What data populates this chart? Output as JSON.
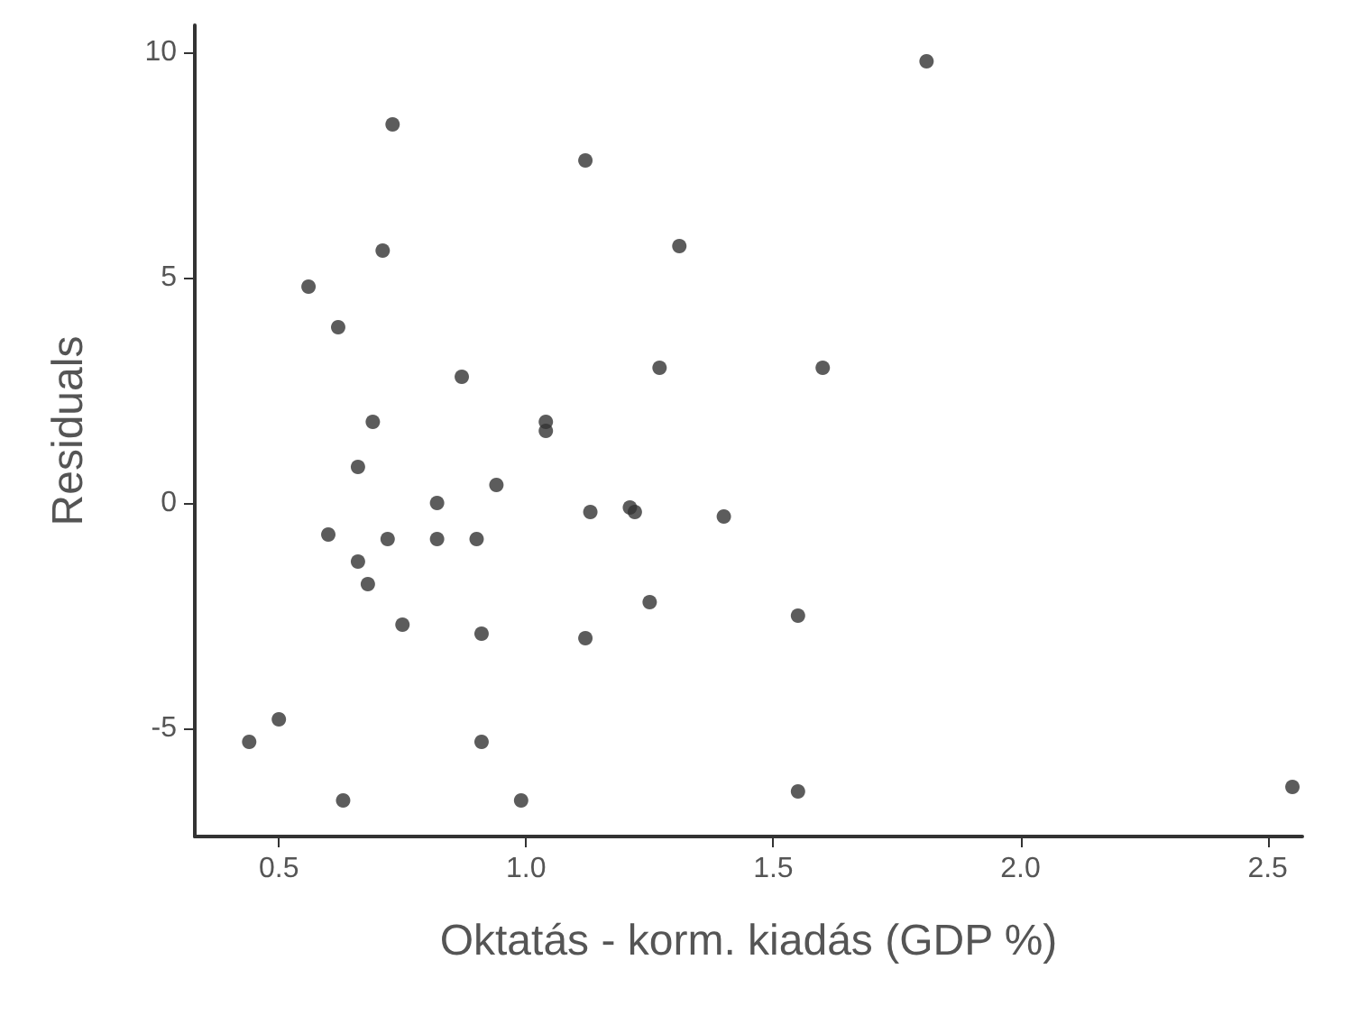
{
  "chart_data": {
    "type": "scatter",
    "xlabel": "Oktatás - korm. kiadás (GDP %)",
    "ylabel": "Residuals",
    "marker": "circle",
    "grid": false,
    "xlim": [
      0.33,
      2.57
    ],
    "ylim": [
      -7.4,
      10.6
    ],
    "xticks": [
      0.5,
      {
        "value": 1,
        "label": "1.0"
      },
      1.5,
      {
        "value": 2,
        "label": "2.0"
      },
      2.5
    ],
    "yticks": [
      -5,
      0,
      5,
      10
    ],
    "series": [
      {
        "color": "#333333",
        "x": [
          0.73,
          1.81,
          1.12,
          0.71,
          1.31,
          0.56,
          0.62,
          0.87,
          1.27,
          1.6,
          0.69,
          1.04,
          1.04,
          0.66,
          0.82,
          0.94,
          1.21,
          1.22,
          1.13,
          1.4,
          0.6,
          0.72,
          0.82,
          0.9,
          0.66,
          0.68,
          1.25,
          0.75,
          1.55,
          0.91,
          1.12,
          0.5,
          0.44,
          0.91,
          0.63,
          0.99,
          1.55,
          2.55
        ],
        "values": [
          8.4,
          9.8,
          7.6,
          5.6,
          5.7,
          4.8,
          3.9,
          2.8,
          3.0,
          3.0,
          1.8,
          1.8,
          1.6,
          0.8,
          0.0,
          0.4,
          -0.1,
          -0.2,
          -0.2,
          -0.3,
          -0.7,
          -0.8,
          -0.8,
          -0.8,
          -1.3,
          -1.8,
          -2.2,
          -2.7,
          -2.5,
          -2.9,
          -3.0,
          -4.8,
          -5.3,
          -5.3,
          -6.6,
          -6.6,
          -6.4,
          -6.3
        ]
      }
    ]
  }
}
